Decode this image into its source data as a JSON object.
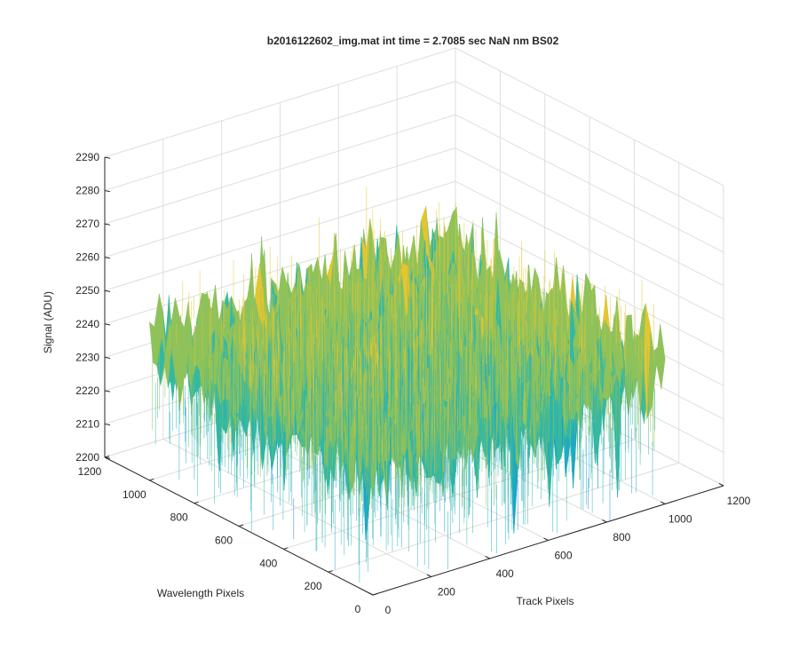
{
  "chart_data": {
    "type": "surface",
    "title": "b2016122602_img.mat int time = 2.7085 sec  NaN nm BS02",
    "xlabel": "Track Pixels",
    "ylabel": "Wavelength Pixels",
    "zlabel": "Signal (ADU)",
    "xlim": [
      0,
      1200
    ],
    "ylim": [
      0,
      1200
    ],
    "zlim": [
      2200,
      2290
    ],
    "x_ticks": [
      "0",
      "200",
      "400",
      "600",
      "800",
      "1000",
      "1200"
    ],
    "y_ticks": [
      "0",
      "200",
      "400",
      "600",
      "800",
      "1000",
      "1200"
    ],
    "z_ticks": [
      "2200",
      "2210",
      "2220",
      "2230",
      "2240",
      "2250",
      "2260",
      "2270",
      "2280",
      "2290"
    ],
    "grid": true,
    "colormap": "parula",
    "colors": {
      "low": "#1f78d6",
      "mid_low": "#19a7c9",
      "mid": "#34b8a3",
      "mid_high": "#8fc25a",
      "high": "#e3c532"
    },
    "data_extent": {
      "track_pixels": [
        0,
        1000
      ],
      "wavelength_pixels": [
        0,
        1000
      ]
    },
    "signal_mean": 2240,
    "signal_range": [
      2200,
      2280
    ]
  }
}
